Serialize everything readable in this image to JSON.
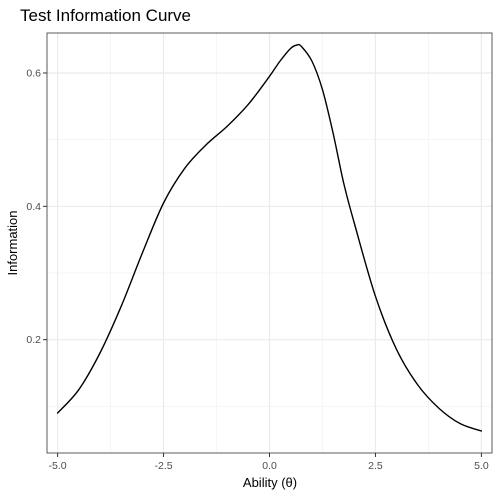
{
  "chart_data": {
    "type": "line",
    "title": "Test Information Curve",
    "xlabel": "Ability (θ)",
    "ylabel": "Information",
    "xlim": [
      -5.25,
      5.25
    ],
    "ylim": [
      0.03,
      0.66
    ],
    "x_ticks": [
      -5,
      -2.5,
      0,
      2.5,
      5
    ],
    "x_tick_labels": [
      "-5.0",
      "-2.5",
      "0.0",
      "2.5",
      "5.0"
    ],
    "y_ticks": [
      0.2,
      0.4,
      0.6
    ],
    "y_tick_labels": [
      "0.2",
      "0.4",
      "0.6"
    ],
    "grid": true,
    "series": [
      {
        "line_color": "#000000",
        "x": [
          -5,
          -4.5,
          -4,
          -3.5,
          -3,
          -2.5,
          -2,
          -1.5,
          -1,
          -0.5,
          0,
          0.25,
          0.5,
          0.65,
          0.75,
          1,
          1.25,
          1.5,
          1.75,
          2,
          2.5,
          3,
          3.5,
          4,
          4.5,
          5
        ],
        "y": [
          0.09,
          0.125,
          0.18,
          0.25,
          0.33,
          0.405,
          0.457,
          0.492,
          0.52,
          0.553,
          0.595,
          0.618,
          0.637,
          0.642,
          0.64,
          0.618,
          0.575,
          0.51,
          0.435,
          0.375,
          0.265,
          0.185,
          0.132,
          0.097,
          0.074,
          0.063
        ]
      }
    ]
  }
}
